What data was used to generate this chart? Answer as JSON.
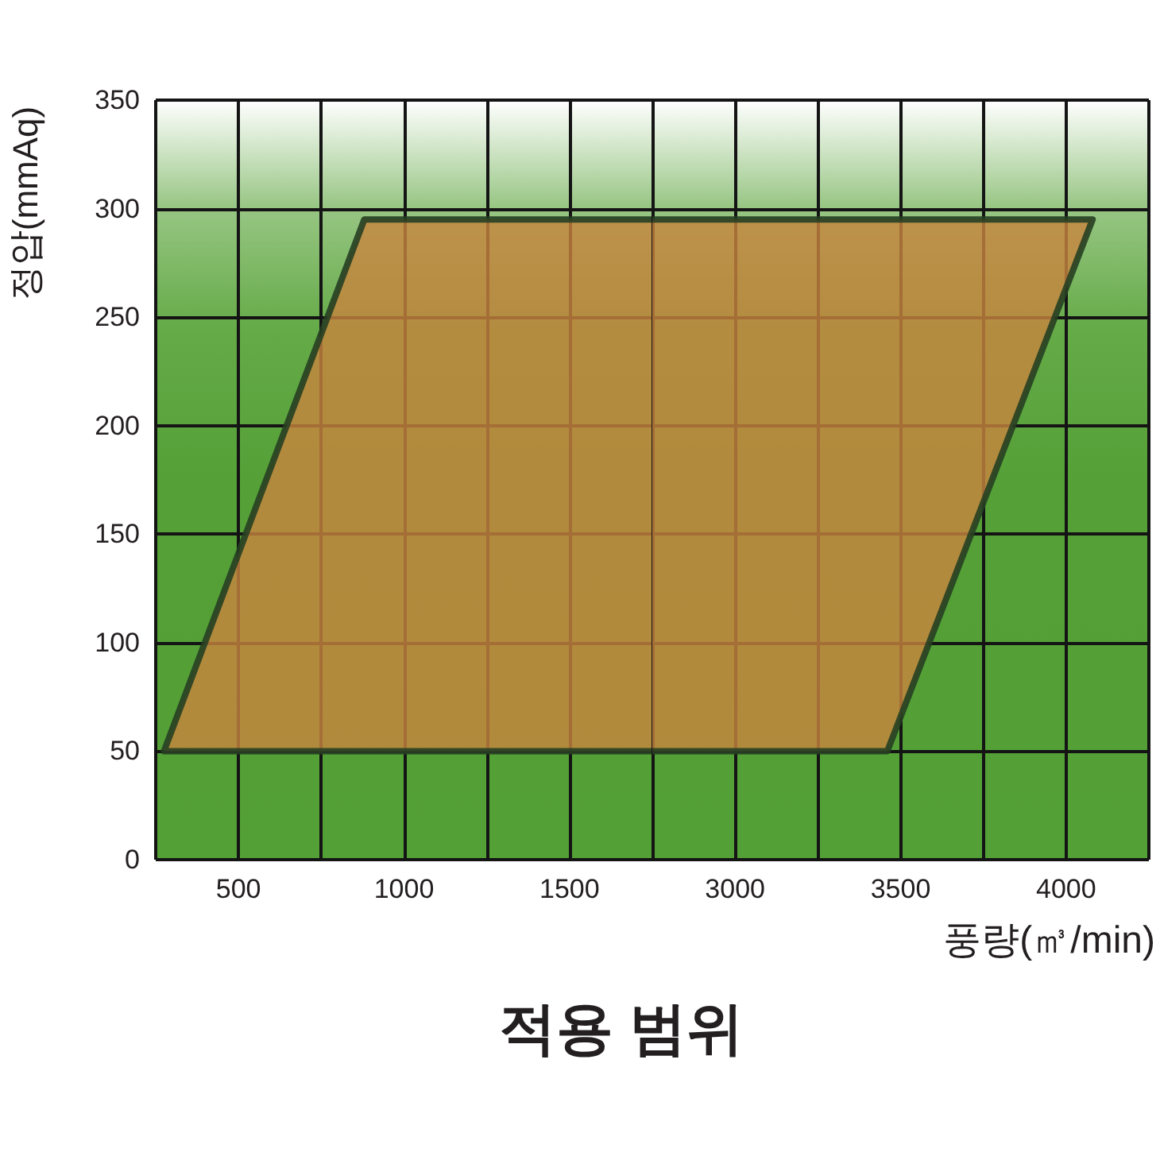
{
  "chart_data": [
    {
      "type": "area",
      "title": "적용 범위",
      "ylabel": "정압(mmAq)",
      "xlim": [
        250,
        1750
      ],
      "xticks": [
        {
          "value": 250,
          "label": null
        },
        500,
        {
          "value": 750,
          "label": null
        },
        1000,
        {
          "value": 1250,
          "label": null
        },
        1500,
        {
          "value": 1750,
          "label": null
        }
      ],
      "ylim": [
        0,
        350
      ],
      "yticks": [
        0,
        50,
        100,
        150,
        200,
        250,
        300,
        350
      ],
      "series": [
        {
          "x": [
            1750,
            275,
            880,
            1750
          ],
          "values": [
            50,
            50,
            295,
            295
          ],
          "color": "#c8853f"
        }
      ],
      "grid": true,
      "marker": "none"
    },
    {
      "type": "area",
      "xlabel": "풍량(㎥/min)",
      "xlim": [
        2750,
        4250
      ],
      "xticks": [
        {
          "value": 2750,
          "label": null
        },
        3000,
        {
          "value": 3250,
          "label": null
        },
        3500,
        {
          "value": 3750,
          "label": null
        },
        4000,
        {
          "value": 4250,
          "label": null
        }
      ],
      "ylim": [
        0,
        350
      ],
      "yticks": [
        0,
        50,
        100,
        150,
        200,
        250,
        300,
        350
      ],
      "tick_labels": "x",
      "series": [
        {
          "x": [
            2750,
            3460,
            4080,
            2750
          ],
          "values": [
            50,
            50,
            295,
            295
          ],
          "color": "#c8853f"
        }
      ],
      "grid": true,
      "marker": "none"
    }
  ]
}
